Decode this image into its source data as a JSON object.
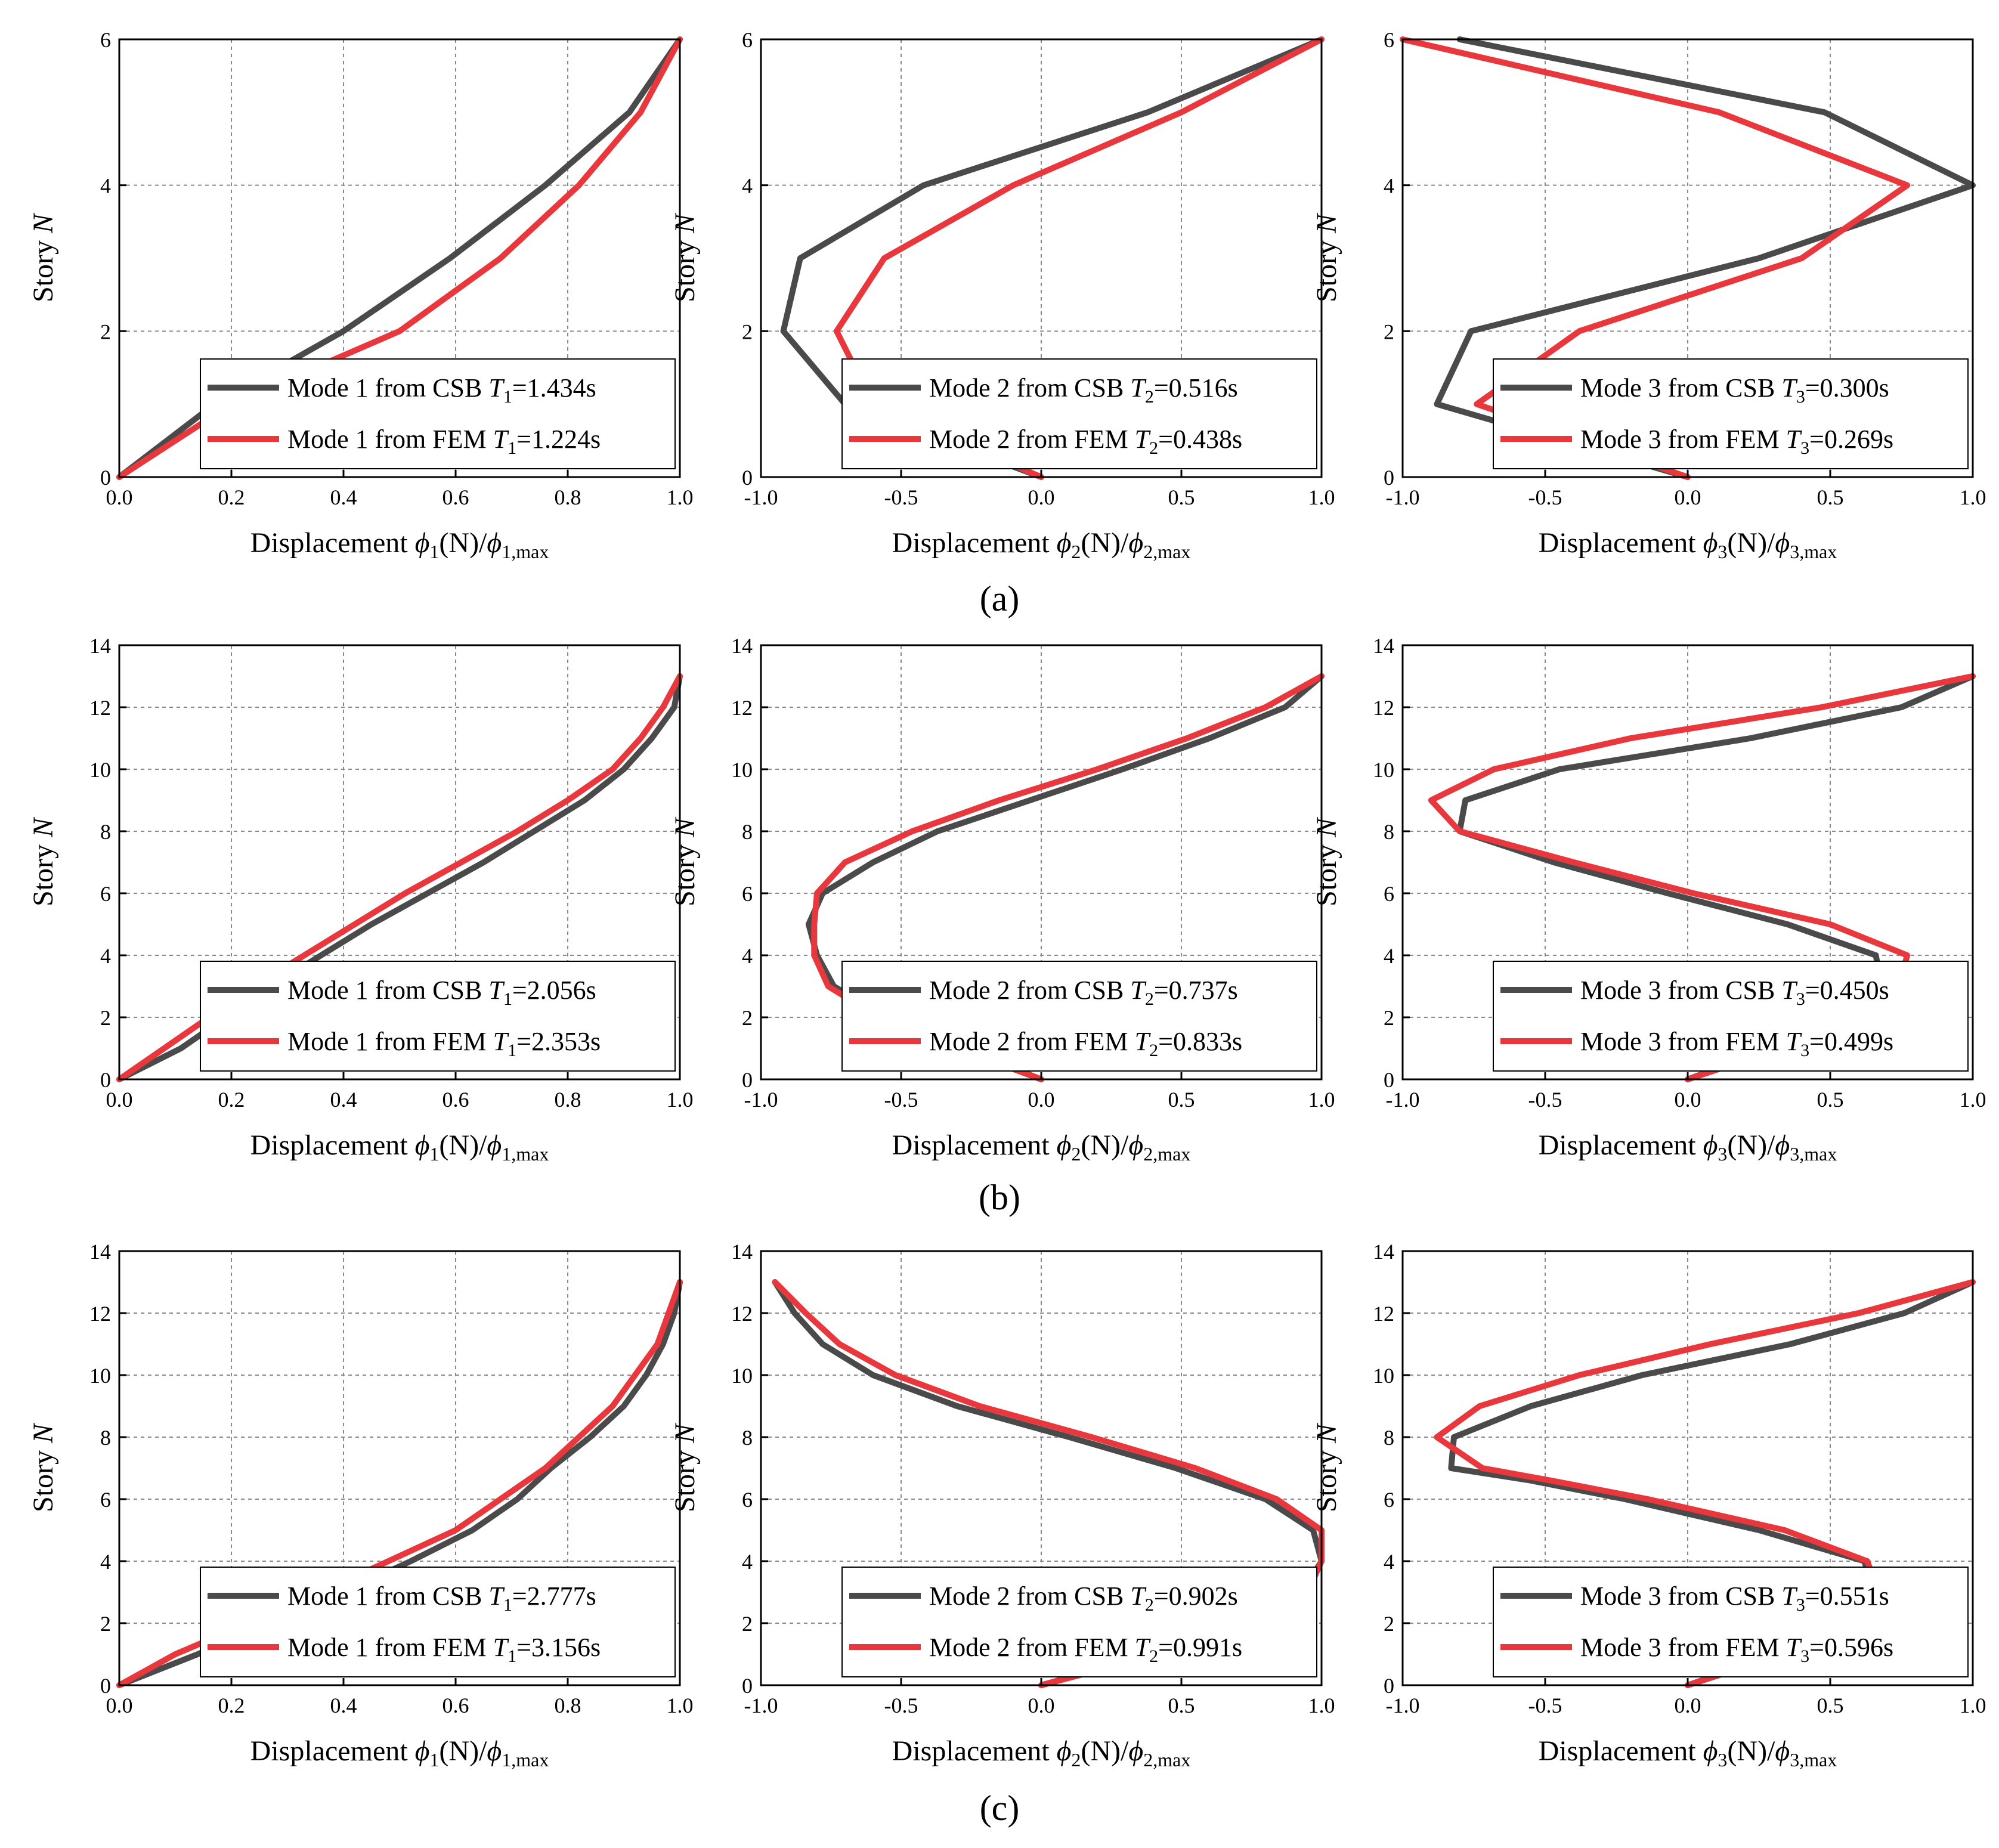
{
  "figure": {
    "captions": [
      "(a)",
      "(b)",
      "(c)"
    ]
  },
  "colors": {
    "csb": "#4a4a4a",
    "fem": "#e8383d",
    "grid": "#8a8a8a"
  },
  "chart_data": [
    {
      "type": "line",
      "row": 0,
      "col": 0,
      "xlabel_prefix": "Displacement ",
      "xlabel_sym": "ϕ",
      "xlabel_sub": "1",
      "xlabel_mid": "(N)/",
      "xlabel_sub2": "1,max",
      "ylabel": "Story ",
      "ylabel_it": "N",
      "xlim": [
        0,
        1
      ],
      "ylim": [
        0,
        6
      ],
      "xticks": [
        0,
        0.2,
        0.4,
        0.6,
        0.8,
        1.0
      ],
      "xtick_labels": [
        "0.0",
        "0.2",
        "0.4",
        "0.6",
        "0.8",
        "1.0"
      ],
      "yticks": [
        0,
        2,
        4,
        6
      ],
      "ytick_labels": [
        "0",
        "2",
        "4",
        "6"
      ],
      "legend_pos": "bottom-right",
      "series": [
        {
          "name": "csb",
          "legend_prefix": "Mode 1 from CSB ",
          "legend_T": "T",
          "legend_sub": "1",
          "legend_value": "=1.434s",
          "x": [
            0,
            0.17,
            0.4,
            0.59,
            0.76,
            0.91,
            1.0
          ],
          "y": [
            0,
            1,
            2,
            3,
            4,
            5,
            6
          ]
        },
        {
          "name": "fem",
          "legend_prefix": "Mode 1 from FEM ",
          "legend_T": "T",
          "legend_sub": "1",
          "legend_value": "=1.224s",
          "x": [
            0,
            0.2,
            0.5,
            0.68,
            0.82,
            0.93,
            1.0
          ],
          "y": [
            0,
            1,
            2,
            3,
            4,
            5,
            6
          ]
        }
      ]
    },
    {
      "type": "line",
      "row": 0,
      "col": 1,
      "xlabel_prefix": "Displacement ",
      "xlabel_sym": "ϕ",
      "xlabel_sub": "2",
      "xlabel_mid": "(N)/",
      "xlabel_sub2": "2,max",
      "ylabel": "Story ",
      "ylabel_it": "N",
      "xlim": [
        -1,
        1
      ],
      "ylim": [
        0,
        6
      ],
      "xticks": [
        -1,
        -0.5,
        0,
        0.5,
        1
      ],
      "xtick_labels": [
        "-1.0",
        "-0.5",
        "0.0",
        "0.5",
        "1.0"
      ],
      "yticks": [
        0,
        2,
        4,
        6
      ],
      "ytick_labels": [
        "0",
        "2",
        "4",
        "6"
      ],
      "legend_pos": "bottom-right",
      "series": [
        {
          "name": "csb",
          "legend_prefix": "Mode 2 from CSB ",
          "legend_T": "T",
          "legend_sub": "2",
          "legend_value": "=0.516s",
          "x": [
            0,
            -0.7,
            -0.92,
            -0.86,
            -0.42,
            0.38,
            1.0
          ],
          "y": [
            0,
            1,
            2,
            3,
            4,
            5,
            6
          ]
        },
        {
          "name": "fem",
          "legend_prefix": "Mode 2 from FEM ",
          "legend_T": "T",
          "legend_sub": "2",
          "legend_value": "=0.438s",
          "x": [
            0,
            -0.6,
            -0.73,
            -0.56,
            -0.1,
            0.5,
            1.0
          ],
          "y": [
            0,
            1,
            2,
            3,
            4,
            5,
            6
          ]
        }
      ]
    },
    {
      "type": "line",
      "row": 0,
      "col": 2,
      "xlabel_prefix": "Displacement ",
      "xlabel_sym": "ϕ",
      "xlabel_sub": "3",
      "xlabel_mid": "(N)/",
      "xlabel_sub2": "3,max",
      "ylabel": "Story ",
      "ylabel_it": "N",
      "xlim": [
        -1,
        1
      ],
      "ylim": [
        0,
        6
      ],
      "xticks": [
        -1,
        -0.5,
        0,
        0.5,
        1
      ],
      "xtick_labels": [
        "-1.0",
        "-0.5",
        "0.0",
        "0.5",
        "1.0"
      ],
      "yticks": [
        0,
        2,
        4,
        6
      ],
      "ytick_labels": [
        "0",
        "2",
        "4",
        "6"
      ],
      "legend_pos": "bottom-right",
      "series": [
        {
          "name": "csb",
          "legend_prefix": "Mode 3 from CSB ",
          "legend_T": "T",
          "legend_sub": "3",
          "legend_value": "=0.300s",
          "x": [
            0,
            -0.88,
            -0.76,
            0.25,
            1.0,
            0.48,
            -0.8
          ],
          "y": [
            0,
            1,
            2,
            3,
            4,
            5,
            6
          ]
        },
        {
          "name": "fem",
          "legend_prefix": "Mode 3 from FEM ",
          "legend_T": "T",
          "legend_sub": "3",
          "legend_value": "=0.269s",
          "x": [
            0,
            -0.74,
            -0.38,
            0.4,
            0.77,
            0.11,
            -1.0
          ],
          "y": [
            0,
            1,
            2,
            3,
            4,
            5,
            6
          ]
        }
      ]
    },
    {
      "type": "line",
      "row": 1,
      "col": 0,
      "xlabel_prefix": "Displacement ",
      "xlabel_sym": "ϕ",
      "xlabel_sub": "1",
      "xlabel_mid": "(N)/",
      "xlabel_sub2": "1,max",
      "ylabel": "Story ",
      "ylabel_it": "N",
      "xlim": [
        0,
        1
      ],
      "ylim": [
        0,
        14
      ],
      "xticks": [
        0,
        0.2,
        0.4,
        0.6,
        0.8,
        1.0
      ],
      "xtick_labels": [
        "0.0",
        "0.2",
        "0.4",
        "0.6",
        "0.8",
        "1.0"
      ],
      "yticks": [
        0,
        2,
        4,
        6,
        8,
        10,
        12,
        14
      ],
      "ytick_labels": [
        "0",
        "2",
        "4",
        "6",
        "8",
        "10",
        "12",
        "14"
      ],
      "legend_pos": "bottom-right",
      "series": [
        {
          "name": "csb",
          "legend_prefix": "Mode 1 from CSB ",
          "legend_T": "T",
          "legend_sub": "1",
          "legend_value": "=2.056s",
          "x": [
            0,
            0.11,
            0.19,
            0.27,
            0.36,
            0.45,
            0.55,
            0.65,
            0.74,
            0.83,
            0.9,
            0.95,
            0.99,
            1.0
          ],
          "y": [
            0,
            1,
            2,
            3,
            4,
            5,
            6,
            7,
            8,
            9,
            10,
            11,
            12,
            13
          ]
        },
        {
          "name": "fem",
          "legend_prefix": "Mode 1 from FEM ",
          "legend_T": "T",
          "legend_sub": "1",
          "legend_value": "=2.353s",
          "x": [
            0,
            0.08,
            0.16,
            0.24,
            0.33,
            0.42,
            0.51,
            0.61,
            0.71,
            0.8,
            0.88,
            0.93,
            0.97,
            1.0
          ],
          "y": [
            0,
            1,
            2,
            3,
            4,
            5,
            6,
            7,
            8,
            9,
            10,
            11,
            12,
            13
          ]
        }
      ]
    },
    {
      "type": "line",
      "row": 1,
      "col": 1,
      "xlabel_prefix": "Displacement ",
      "xlabel_sym": "ϕ",
      "xlabel_sub": "2",
      "xlabel_mid": "(N)/",
      "xlabel_sub2": "2,max",
      "ylabel": "Story ",
      "ylabel_it": "N",
      "xlim": [
        -1,
        1
      ],
      "ylim": [
        0,
        14
      ],
      "xticks": [
        -1,
        -0.5,
        0,
        0.5,
        1
      ],
      "xtick_labels": [
        "-1.0",
        "-0.5",
        "0.0",
        "0.5",
        "1.0"
      ],
      "yticks": [
        0,
        2,
        4,
        6,
        8,
        10,
        12,
        14
      ],
      "ytick_labels": [
        "0",
        "2",
        "4",
        "6",
        "8",
        "10",
        "12",
        "14"
      ],
      "legend_pos": "bottom-right",
      "series": [
        {
          "name": "csb",
          "legend_prefix": "Mode 2 from CSB ",
          "legend_T": "T",
          "legend_sub": "2",
          "legend_value": "=0.737s",
          "x": [
            0,
            -0.28,
            -0.55,
            -0.74,
            -0.8,
            -0.83,
            -0.78,
            -0.6,
            -0.37,
            -0.04,
            0.29,
            0.6,
            0.87,
            1.0
          ],
          "y": [
            0,
            1,
            2,
            3,
            4,
            5,
            6,
            7,
            8,
            9,
            10,
            11,
            12,
            13
          ]
        },
        {
          "name": "fem",
          "legend_prefix": "Mode 2 from FEM ",
          "legend_T": "T",
          "legend_sub": "2",
          "legend_value": "=0.833s",
          "x": [
            0,
            -0.3,
            -0.58,
            -0.76,
            -0.81,
            -0.81,
            -0.8,
            -0.7,
            -0.46,
            -0.15,
            0.2,
            0.52,
            0.8,
            1.0
          ],
          "y": [
            0,
            1,
            2,
            3,
            4,
            5,
            6,
            7,
            8,
            9,
            10,
            11,
            12,
            13
          ]
        }
      ]
    },
    {
      "type": "line",
      "row": 1,
      "col": 2,
      "xlabel_prefix": "Displacement ",
      "xlabel_sym": "ϕ",
      "xlabel_sub": "3",
      "xlabel_mid": "(N)/",
      "xlabel_sub2": "3,max",
      "ylabel": "Story ",
      "ylabel_it": "N",
      "xlim": [
        -1,
        1
      ],
      "ylim": [
        0,
        14
      ],
      "xticks": [
        -1,
        -0.5,
        0,
        0.5,
        1
      ],
      "xtick_labels": [
        "-1.0",
        "-0.5",
        "0.0",
        "0.5",
        "1.0"
      ],
      "yticks": [
        0,
        2,
        4,
        6,
        8,
        10,
        12,
        14
      ],
      "ytick_labels": [
        "0",
        "2",
        "4",
        "6",
        "8",
        "10",
        "12",
        "14"
      ],
      "legend_pos": "bottom-right",
      "series": [
        {
          "name": "csb",
          "legend_prefix": "Mode 3 from CSB ",
          "legend_T": "T",
          "legend_sub": "3",
          "legend_value": "=0.450s",
          "x": [
            0,
            0.3,
            0.52,
            0.68,
            0.66,
            0.35,
            -0.07,
            -0.47,
            -0.8,
            -0.78,
            -0.45,
            0.22,
            0.75,
            1.0
          ],
          "y": [
            0,
            1,
            2,
            3,
            4,
            5,
            6,
            7,
            8,
            9,
            10,
            11,
            12,
            13
          ]
        },
        {
          "name": "fem",
          "legend_prefix": "Mode 3 from FEM ",
          "legend_T": "T",
          "legend_sub": "3",
          "legend_value": "=0.499s",
          "x": [
            0,
            0.33,
            0.57,
            0.74,
            0.77,
            0.5,
            0.02,
            -0.4,
            -0.8,
            -0.9,
            -0.68,
            -0.2,
            0.47,
            1.0
          ],
          "y": [
            0,
            1,
            2,
            3,
            4,
            5,
            6,
            7,
            8,
            9,
            10,
            11,
            12,
            13
          ]
        }
      ]
    },
    {
      "type": "line",
      "row": 2,
      "col": 0,
      "xlabel_prefix": "Displacement ",
      "xlabel_sym": "ϕ",
      "xlabel_sub": "1",
      "xlabel_mid": "(N)/",
      "xlabel_sub2": "1,max",
      "ylabel": "Story ",
      "ylabel_it": "N",
      "xlim": [
        0,
        1
      ],
      "ylim": [
        0,
        14
      ],
      "xticks": [
        0,
        0.2,
        0.4,
        0.6,
        0.8,
        1.0
      ],
      "xtick_labels": [
        "0.0",
        "0.2",
        "0.4",
        "0.6",
        "0.8",
        "1.0"
      ],
      "yticks": [
        0,
        2,
        4,
        6,
        8,
        10,
        12,
        14
      ],
      "ytick_labels": [
        "0",
        "2",
        "4",
        "6",
        "8",
        "10",
        "12",
        "14"
      ],
      "legend_pos": "bottom-right",
      "series": [
        {
          "name": "csb",
          "legend_prefix": "Mode 1 from CSB ",
          "legend_T": "T",
          "legend_sub": "1",
          "legend_value": "=2.777s",
          "x": [
            0,
            0.14,
            0.27,
            0.4,
            0.52,
            0.63,
            0.71,
            0.77,
            0.84,
            0.9,
            0.94,
            0.97,
            0.99,
            1.0
          ],
          "y": [
            0,
            1,
            2,
            3,
            4,
            5,
            6,
            7,
            8,
            9,
            10,
            11,
            12,
            13
          ]
        },
        {
          "name": "fem",
          "legend_prefix": "Mode 1 from FEM ",
          "legend_T": "T",
          "legend_sub": "1",
          "legend_value": "=3.156s",
          "x": [
            0,
            0.1,
            0.23,
            0.36,
            0.48,
            0.6,
            0.68,
            0.76,
            0.82,
            0.88,
            0.92,
            0.96,
            0.98,
            1.0
          ],
          "y": [
            0,
            1,
            2,
            3,
            4,
            5,
            6,
            7,
            8,
            9,
            10,
            11,
            12,
            13
          ]
        }
      ]
    },
    {
      "type": "line",
      "row": 2,
      "col": 1,
      "xlabel_prefix": "Displacement ",
      "xlabel_sym": "ϕ",
      "xlabel_sub": "2",
      "xlabel_mid": "(N)/",
      "xlabel_sub2": "2,max",
      "ylabel": "Story ",
      "ylabel_it": "N",
      "xlim": [
        -1,
        1
      ],
      "ylim": [
        0,
        14
      ],
      "xticks": [
        -1,
        -0.5,
        0,
        0.5,
        1
      ],
      "xtick_labels": [
        "-1.0",
        "-0.5",
        "0.0",
        "0.5",
        "1.0"
      ],
      "yticks": [
        0,
        2,
        4,
        6,
        8,
        10,
        12,
        14
      ],
      "ytick_labels": [
        "0",
        "2",
        "4",
        "6",
        "8",
        "10",
        "12",
        "14"
      ],
      "legend_pos": "bottom-right",
      "series": [
        {
          "name": "csb",
          "legend_prefix": "Mode 2 from CSB ",
          "legend_T": "T",
          "legend_sub": "2",
          "legend_value": "=0.902s",
          "x": [
            0,
            0.4,
            0.73,
            0.93,
            1.0,
            0.97,
            0.8,
            0.48,
            0.1,
            -0.3,
            -0.6,
            -0.78,
            -0.88,
            -0.95
          ],
          "y": [
            0,
            1,
            2,
            3,
            4,
            5,
            6,
            7,
            8,
            9,
            10,
            11,
            12,
            13
          ]
        },
        {
          "name": "fem",
          "legend_prefix": "Mode 2 from FEM ",
          "legend_T": "T",
          "legend_sub": "2",
          "legend_value": "=0.991s",
          "x": [
            0,
            0.42,
            0.76,
            0.95,
            1.0,
            1.0,
            0.84,
            0.55,
            0.18,
            -0.22,
            -0.52,
            -0.72,
            -0.84,
            -0.95
          ],
          "y": [
            0,
            1,
            2,
            3,
            4,
            5,
            6,
            7,
            8,
            9,
            10,
            11,
            12,
            13
          ]
        }
      ]
    },
    {
      "type": "line",
      "row": 2,
      "col": 2,
      "xlabel_prefix": "Displacement ",
      "xlabel_sym": "ϕ",
      "xlabel_sub": "3",
      "xlabel_mid": "(N)/",
      "xlabel_sub2": "3,max",
      "ylabel": "Story ",
      "ylabel_it": "N",
      "xlim": [
        -1,
        1
      ],
      "ylim": [
        0,
        14
      ],
      "xticks": [
        -1,
        -0.5,
        0,
        0.5,
        1
      ],
      "xtick_labels": [
        "-1.0",
        "-0.5",
        "0.0",
        "0.5",
        "1.0"
      ],
      "yticks": [
        0,
        2,
        4,
        6,
        8,
        10,
        12,
        14
      ],
      "ytick_labels": [
        "0",
        "2",
        "4",
        "6",
        "8",
        "10",
        "12",
        "14"
      ],
      "legend_pos": "bottom-right",
      "series": [
        {
          "name": "csb",
          "legend_prefix": "Mode 3 from CSB ",
          "legend_T": "T",
          "legend_sub": "3",
          "legend_value": "=0.551s",
          "x": [
            0,
            0.32,
            0.52,
            0.65,
            0.62,
            0.25,
            -0.22,
            -0.55,
            -0.83,
            -0.82,
            -0.55,
            -0.16,
            0.36,
            0.76,
            1.0
          ],
          "y": [
            0,
            1,
            2,
            3,
            4,
            5,
            6,
            6.6,
            7,
            8,
            9,
            10,
            11,
            12,
            13
          ]
        },
        {
          "name": "fem",
          "legend_prefix": "Mode 3 from FEM ",
          "legend_T": "T",
          "legend_sub": "3",
          "legend_value": "=0.596s",
          "x": [
            0,
            0.34,
            0.56,
            0.67,
            0.63,
            0.34,
            -0.14,
            -0.48,
            -0.72,
            -0.88,
            -0.73,
            -0.38,
            0.08,
            0.6,
            1.0
          ],
          "y": [
            0,
            1,
            2,
            3,
            4,
            5,
            6,
            6.6,
            7,
            8,
            9,
            10,
            11,
            12,
            13
          ]
        }
      ]
    }
  ]
}
